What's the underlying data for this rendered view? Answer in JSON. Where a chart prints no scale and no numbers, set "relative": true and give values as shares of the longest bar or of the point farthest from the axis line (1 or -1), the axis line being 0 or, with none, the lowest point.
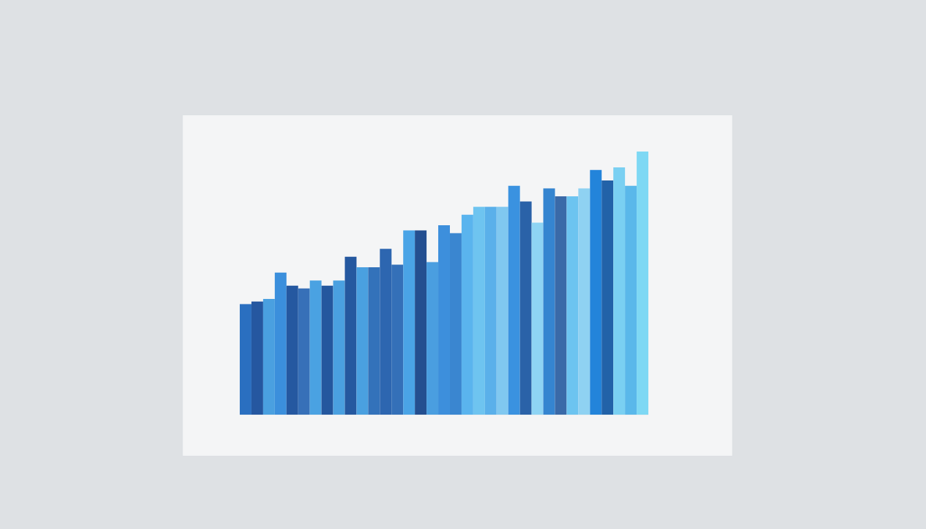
{
  "chart_data": {
    "type": "bar",
    "relative": true,
    "categories": [
      null,
      null,
      null,
      null,
      null,
      null,
      null,
      null,
      null,
      null,
      null,
      null,
      null,
      null,
      null,
      null,
      null,
      null,
      null,
      null,
      null,
      null,
      null,
      null,
      null,
      null,
      null,
      null,
      null,
      null,
      null,
      null,
      null,
      null,
      null
    ],
    "values": [
      0.42,
      0.43,
      0.44,
      0.54,
      0.49,
      0.48,
      0.51,
      0.49,
      0.51,
      0.6,
      0.56,
      0.56,
      0.63,
      0.57,
      0.7,
      0.7,
      0.58,
      0.72,
      0.69,
      0.76,
      0.79,
      0.79,
      0.79,
      0.87,
      0.81,
      0.73,
      0.86,
      0.83,
      0.83,
      0.86,
      0.93,
      0.89,
      0.94,
      0.87,
      1
    ],
    "colors": [
      "#2a6fc0",
      "#2557a0",
      "#4aa0e0",
      "#3b8fdc",
      "#2558a0",
      "#3770b8",
      "#4aa2e2",
      "#24579e",
      "#4aa0e0",
      "#25589f",
      "#4aa0e0",
      "#3372ba",
      "#2d66b0",
      "#3470b8",
      "#4aa4e6",
      "#244f90",
      "#4a9ee0",
      "#3d8fdc",
      "#3a86d0",
      "#5ab4ee",
      "#6ec4f0",
      "#5ab0ea",
      "#80c8f0",
      "#3a92e0",
      "#2a62a8",
      "#8ed4f4",
      "#3585d0",
      "#3a6aa8",
      "#6cc4f0",
      "#8fd2f2",
      "#2384da",
      "#2262a8",
      "#7ad0f2",
      "#5ab8ea",
      "#7ed8f4"
    ]
  }
}
